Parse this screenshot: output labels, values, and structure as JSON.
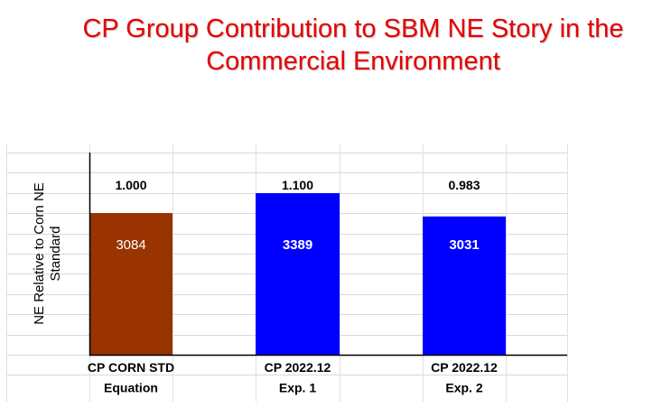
{
  "title": {
    "line1": "CP Group Contribution to SBM NE Story in the",
    "line2": "Commercial Environment"
  },
  "chart_data": {
    "type": "bar",
    "title": "CP Group Contribution to SBM NE Story in the Commercial Environment",
    "xlabel": "",
    "ylabel": "NE Relative to Corn NE Standard",
    "ylabel_lines": [
      "NE Relative to Corn NE",
      "Standard"
    ],
    "categories": [
      [
        "CP CORN STD",
        "Equation"
      ],
      [
        "CP 2022.12",
        "Exp. 1"
      ],
      [
        "CP 2022.12",
        "Exp. 2"
      ]
    ],
    "values": [
      3084,
      3389,
      3031
    ],
    "value_labels": [
      "3084",
      "3389",
      "3031"
    ],
    "relative_labels": [
      "1.000",
      "1.100",
      "0.983"
    ],
    "relative_values": [
      1.0,
      1.1,
      0.983
    ],
    "colors": [
      "#993300",
      "#0000ff",
      "#0000ff"
    ],
    "value_label_colors": [
      "#ffffff",
      "#ffffff",
      "#ffffff"
    ],
    "grid": true,
    "legend": "none"
  }
}
